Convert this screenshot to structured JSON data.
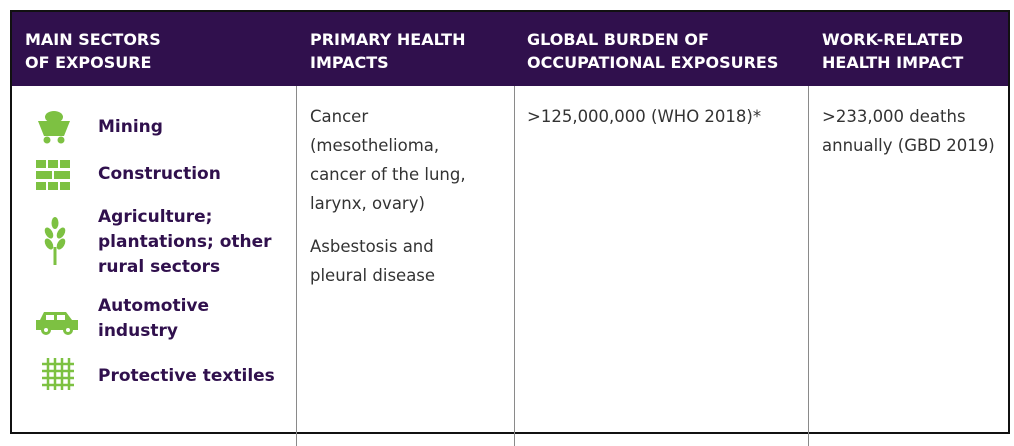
{
  "table": {
    "headers": [
      [
        "MAIN SECTORS",
        "OF EXPOSURE"
      ],
      [
        "PRIMARY HEALTH",
        "IMPACTS"
      ],
      [
        "GLOBAL BURDEN OF",
        "OCCUPATIONAL EXPOSURES"
      ],
      [
        "WORK-RELATED",
        "HEALTH IMPACT"
      ]
    ],
    "sectors": [
      [
        "Mining"
      ],
      [
        "Construction"
      ],
      [
        "Agriculture;",
        "plantations; other",
        "rural sectors"
      ],
      [
        "Automotive",
        "industry"
      ],
      [
        "Protective textiles"
      ]
    ],
    "impacts": [
      [
        "Cancer",
        "(mesothelioma,",
        "cancer of the lung,",
        "larynx, ovary)"
      ],
      [
        "Asbestosis and",
        "pleural disease"
      ]
    ],
    "burden": [
      ">125,000,000 (WHO 2018)*"
    ],
    "health_impact": [
      ">233,000 deaths",
      "annually (GBD 2019)"
    ]
  }
}
